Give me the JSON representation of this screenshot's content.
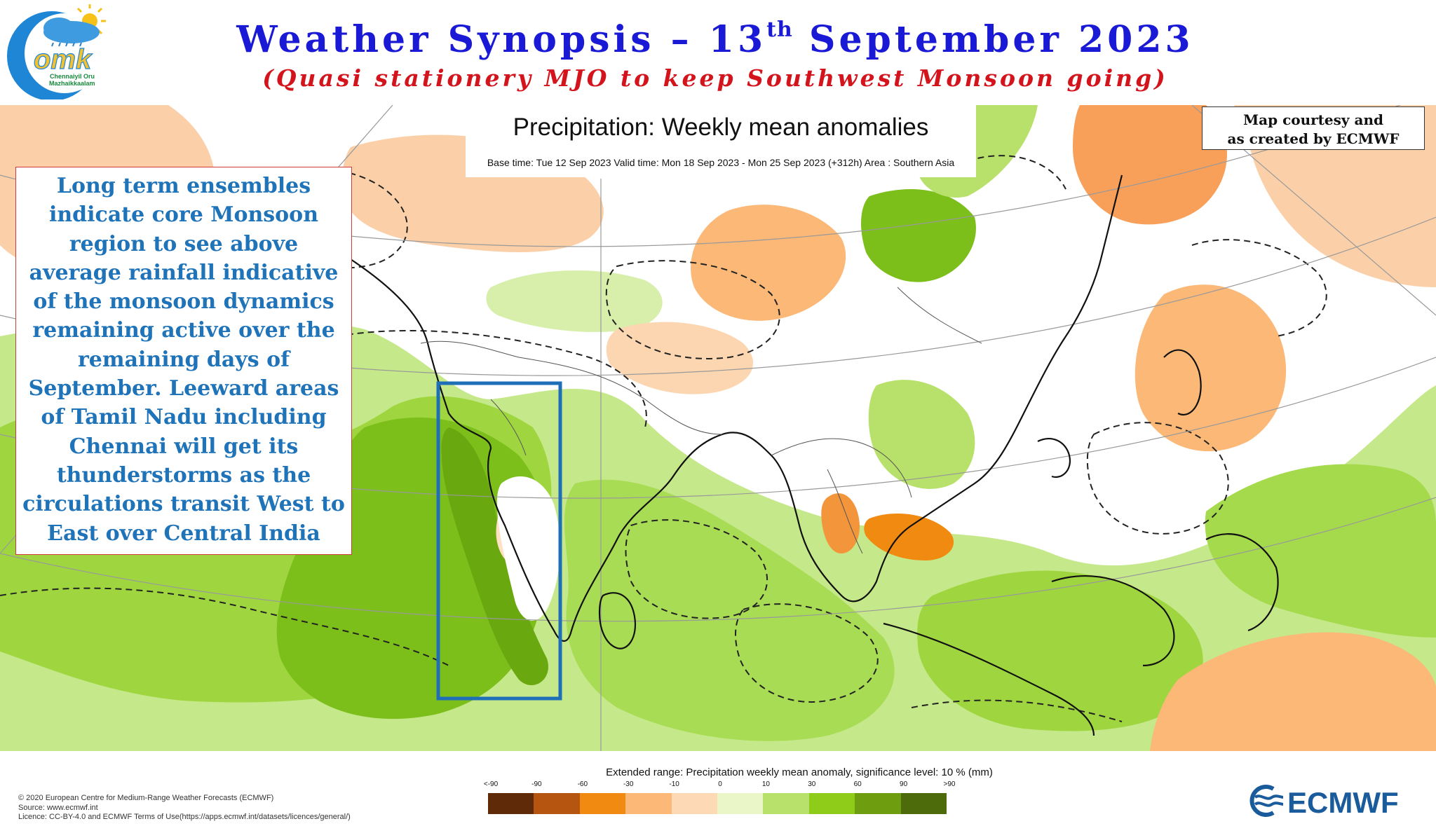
{
  "header": {
    "title_main": "Weather Synopsis – 13",
    "title_sup": "th",
    "title_end": " September 2023",
    "subtitle": "(Quasi stationery MJO to keep Southwest Monsoon going)"
  },
  "logo": {
    "brand": "omk",
    "tagline_line1": "Chennaiyil Oru",
    "tagline_line2": "Mazhaikkaalam"
  },
  "map": {
    "title": "Precipitation: Weekly mean anomalies",
    "subtitle": "Base time: Tue 12 Sep 2023 Valid time: Mon 18 Sep 2023 - Mon 25 Sep 2023 (+312h) Area : Southern Asia"
  },
  "courtesy": {
    "line1": "Map courtesy and",
    "line2": "as created by ECMWF"
  },
  "annotation": {
    "text": "Long term ensembles indicate core Monsoon region to see above average rainfall indicative of the monsoon dynamics remaining active over the remaining days of September. Leeward areas of Tamil Nadu including Chennai will get its thunderstorms as the circulations transit West to East over Central India"
  },
  "legend": {
    "title": "Extended range: Precipitation weekly mean anomaly, significance level: 10 % (mm)",
    "ticks": [
      "<-90",
      "-90",
      "-60",
      "-30",
      "-10",
      "0",
      "10",
      "30",
      "60",
      "90",
      ">90"
    ],
    "colors": [
      "#5e2a08",
      "#b55510",
      "#f08a10",
      "#fbb877",
      "#fdd9b5",
      "#eaf5c8",
      "#b7e16a",
      "#8fcc1a",
      "#6e9e10",
      "#4e6b0c"
    ]
  },
  "footer": {
    "copyright": "© 2020 European Centre for Medium-Range Weather Forecasts (ECMWF)",
    "source": "Source: www.ecmwf.int",
    "licence": "Licence: CC-BY-4.0 and ECMWF Terms of Use(https://apps.ecmwf.int/datasets/licences/general/)",
    "brand": "ECMWF"
  },
  "colors": {
    "title": "#1a1ad6",
    "subtitle": "#d4141c",
    "annotation_text": "#1f73b8",
    "highlight_box": "#1f6fb8"
  }
}
